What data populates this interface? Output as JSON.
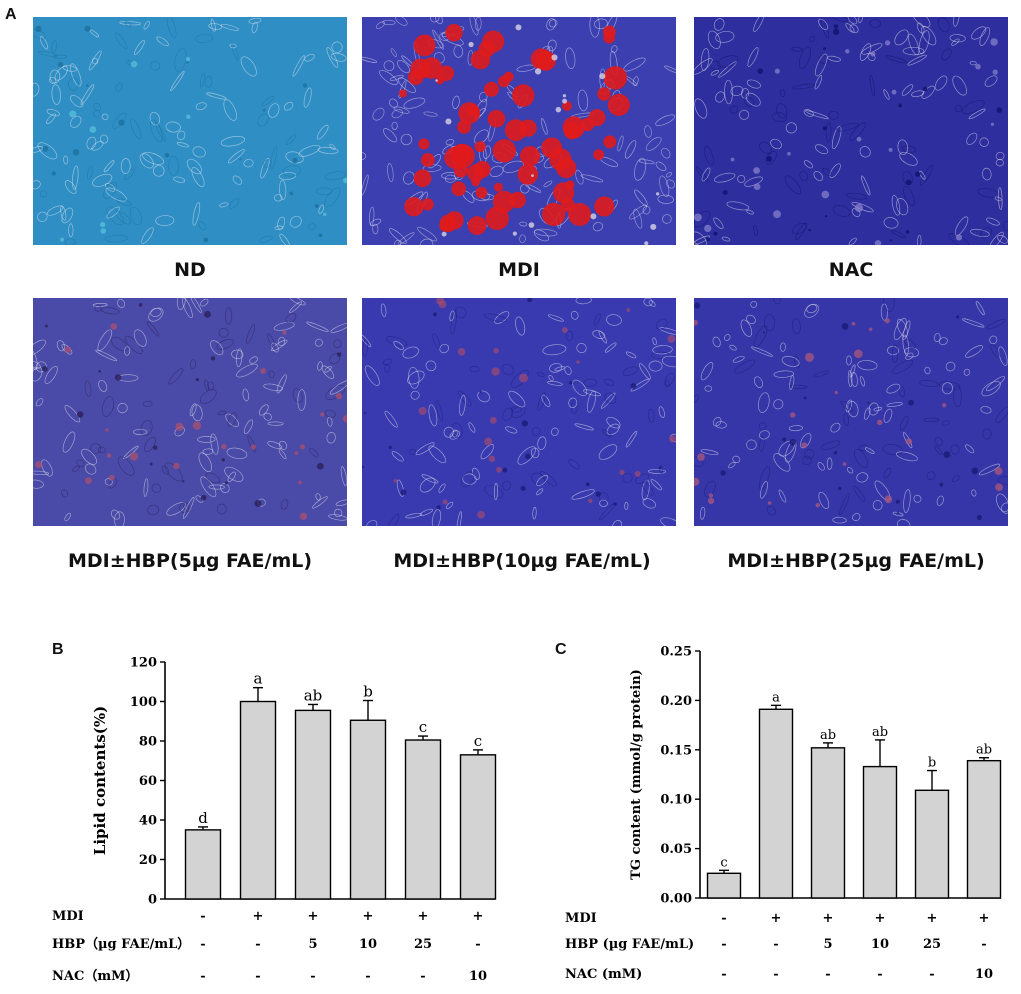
{
  "panel_labels": {
    "a": "A",
    "b": "B",
    "c": "C"
  },
  "micrographs": [
    {
      "caption": "ND",
      "tint": "#2f8fc4",
      "accent": "#5bc3e0",
      "spots": "#1d6f9c"
    },
    {
      "caption": "MDI",
      "tint": "#3b3fb0",
      "accent": "#e01b1b",
      "spots": "#d9d4e4"
    },
    {
      "caption": "NAC",
      "tint": "#2e2e9e",
      "accent": "#8a86d0",
      "spots": "#121270"
    },
    {
      "caption": "MDI±HBP(5µg FAE/mL)",
      "tint": "#4a4aa8",
      "accent": "#b0506a",
      "spots": "#2b1f5a"
    },
    {
      "caption": "MDI±HBP(10µg FAE/mL)",
      "tint": "#3a3ab0",
      "accent": "#a04a70",
      "spots": "#1c1c7a"
    },
    {
      "caption": "MDI±HBP(25µg FAE/mL)",
      "tint": "#3636a8",
      "accent": "#b45a78",
      "spots": "#1a1a74"
    }
  ],
  "chart_data": [
    {
      "type": "bar",
      "ylabel": "Lipid contents(%)",
      "ylim": [
        0,
        120
      ],
      "yticks": [
        "0",
        "20",
        "40",
        "60",
        "80",
        "100",
        "120"
      ],
      "values": [
        35,
        100,
        95.5,
        90.5,
        80.5,
        73
      ],
      "errors": [
        1.5,
        7,
        3,
        10,
        2,
        2.5
      ],
      "sig_letters": [
        "d",
        "a",
        "ab",
        "b",
        "c",
        "c"
      ],
      "bar_color": "#d3d3d3",
      "treatments": [
        {
          "label": "MDI",
          "values": [
            "-",
            "+",
            "+",
            "+",
            "+",
            "+"
          ]
        },
        {
          "label": "HBP（µg FAE/mL）",
          "values": [
            "-",
            "-",
            "5",
            "10",
            "25",
            "-"
          ]
        },
        {
          "label": "NAC（mM）",
          "values": [
            "-",
            "-",
            "-",
            "-",
            "-",
            "10"
          ]
        }
      ]
    },
    {
      "type": "bar",
      "ylabel": "TG content (mmol/g protein)",
      "ylim": [
        0,
        0.25
      ],
      "yticks": [
        "0.00",
        "0.05",
        "0.10",
        "0.15",
        "0.20",
        "0.25"
      ],
      "values": [
        0.025,
        0.191,
        0.152,
        0.133,
        0.109,
        0.139
      ],
      "errors": [
        0.003,
        0.004,
        0.005,
        0.027,
        0.02,
        0.003
      ],
      "sig_letters": [
        "c",
        "a",
        "ab",
        "ab",
        "b",
        "ab"
      ],
      "bar_color": "#d3d3d3",
      "treatments": [
        {
          "label": "MDI",
          "values": [
            "-",
            "+",
            "+",
            "+",
            "+",
            "+"
          ]
        },
        {
          "label": "HBP (µg FAE/mL)",
          "values": [
            "-",
            "-",
            "5",
            "10",
            "25",
            "-"
          ]
        },
        {
          "label": "NAC (mM)",
          "values": [
            "-",
            "-",
            "-",
            "-",
            "-",
            "10"
          ]
        }
      ]
    }
  ]
}
